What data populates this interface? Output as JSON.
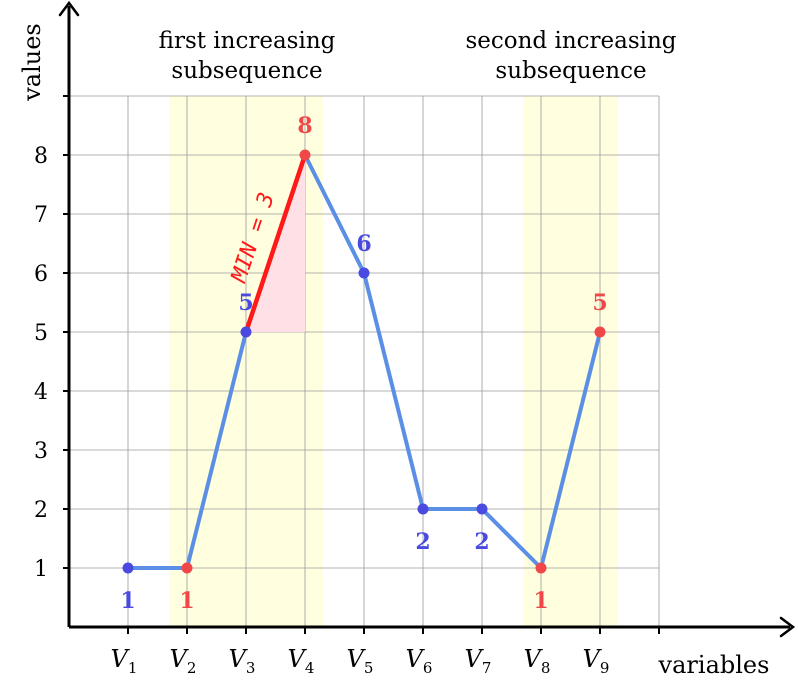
{
  "chart_data": {
    "type": "line",
    "xlabel": "variables",
    "ylabel": "values",
    "categories": [
      "V1",
      "V2",
      "V3",
      "V4",
      "V5",
      "V6",
      "V7",
      "V8",
      "V9"
    ],
    "category_subscripts": [
      "1",
      "2",
      "3",
      "4",
      "5",
      "6",
      "7",
      "8",
      "9"
    ],
    "values": [
      1,
      1,
      5,
      8,
      6,
      2,
      2,
      1,
      5
    ],
    "point_labels": [
      "1",
      "1",
      "5",
      "8",
      "6",
      "2",
      "2",
      "1",
      "5"
    ],
    "yticks": [
      "1",
      "2",
      "3",
      "4",
      "5",
      "6",
      "7",
      "8"
    ],
    "ylim": [
      0,
      9
    ],
    "grid": true,
    "regions": [
      {
        "name_line1": "first increasing",
        "name_line2": "subsequence",
        "from_index": 1,
        "to_index": 3,
        "endpoints": [
          1,
          3
        ]
      },
      {
        "name_line1": "second increasing",
        "name_line2": "subsequence",
        "from_index": 7,
        "to_index": 8,
        "endpoints": [
          7,
          8
        ]
      }
    ],
    "highlight_segment": {
      "from_index": 2,
      "to_index": 3,
      "label": "MIN = 3"
    },
    "colors": {
      "line": "#5b8fe6",
      "highlight": "#ff1a1a",
      "red_points": "#f04848",
      "blue_points": "#4a4ae0",
      "band": "#ffffe0",
      "triangle": "#ffe0e6",
      "grid": "#9a9a9a",
      "axis": "#000000"
    }
  }
}
